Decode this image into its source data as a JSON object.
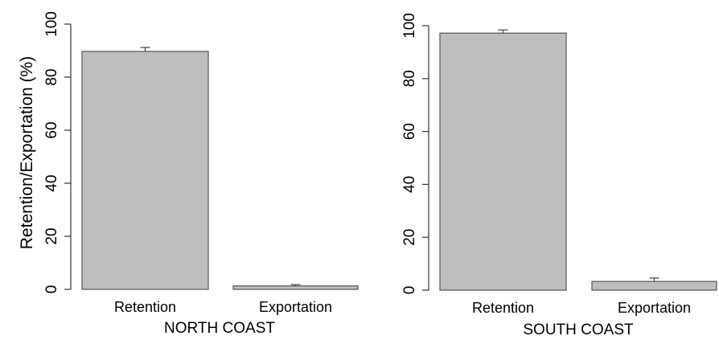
{
  "figure": {
    "ylabel": "Retention/Exportation (%)"
  },
  "chart_data": [
    {
      "type": "bar",
      "title": "NORTH COAST",
      "xlabel": "NORTH COAST",
      "ylabel": "Retention/Exportation (%)",
      "categories": [
        "Retention",
        "Exportation"
      ],
      "values": [
        89.7,
        1.3
      ],
      "errors": [
        1.5,
        0.5
      ],
      "ylim": [
        0,
        100
      ],
      "yticks": [
        "0",
        "20",
        "40",
        "60",
        "80",
        "100"
      ],
      "grid": false,
      "bar_color": "#bebebe",
      "edge_color": "#555555"
    },
    {
      "type": "bar",
      "title": "SOUTH COAST",
      "xlabel": "SOUTH COAST",
      "ylabel": "",
      "categories": [
        "Retention",
        "Exportation"
      ],
      "values": [
        97.2,
        3.3
      ],
      "errors": [
        1.2,
        1.3
      ],
      "ylim": [
        0,
        100
      ],
      "yticks": [
        "0",
        "20",
        "40",
        "60",
        "80",
        "100"
      ],
      "grid": false,
      "bar_color": "#bebebe",
      "edge_color": "#555555"
    }
  ]
}
